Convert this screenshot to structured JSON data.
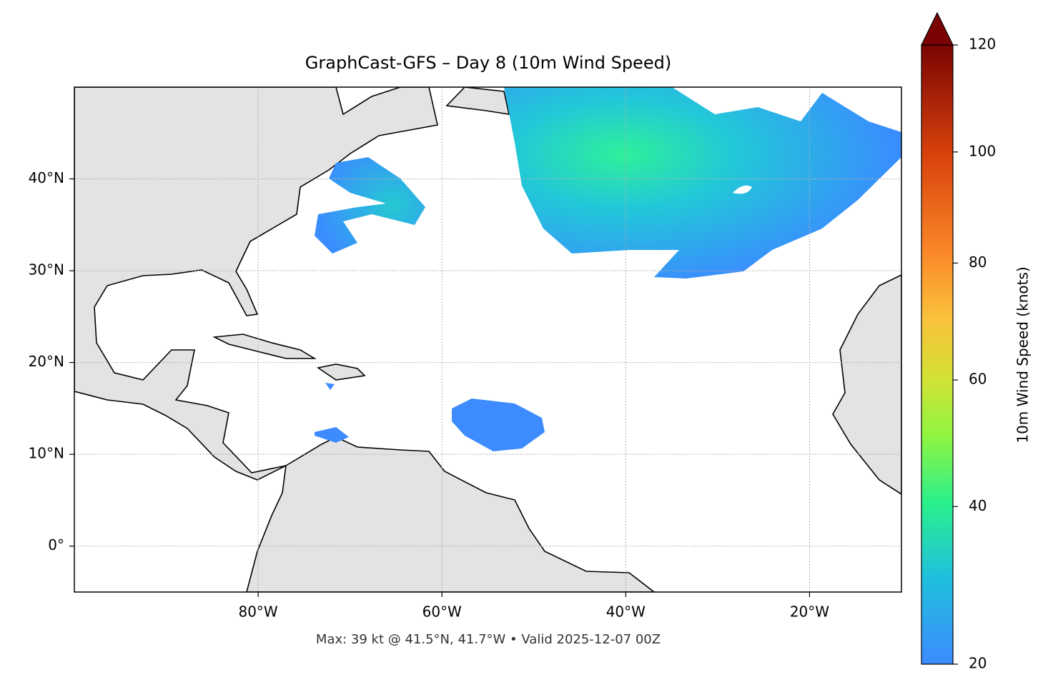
{
  "chart_data": {
    "type": "map",
    "title": "GraphCast-GFS – Day 8 (10m Wind Speed)",
    "footnote": "Max: 39 kt @ 41.5°N, 41.7°W • Valid 2025-12-07 00Z",
    "xlim": [
      -100,
      -10
    ],
    "ylim": [
      -5,
      50
    ],
    "xticks": [
      {
        "value": -80,
        "label": "80°W"
      },
      {
        "value": -60,
        "label": "60°W"
      },
      {
        "value": -40,
        "label": "40°W"
      },
      {
        "value": -20,
        "label": "20°W"
      }
    ],
    "yticks": [
      {
        "value": 0,
        "label": "0°"
      },
      {
        "value": 10,
        "label": "10°N"
      },
      {
        "value": 20,
        "label": "20°N"
      },
      {
        "value": 30,
        "label": "30°N"
      },
      {
        "value": 40,
        "label": "40°N"
      }
    ],
    "grid": true,
    "colorbar": {
      "label": "10m Wind Speed (knots)",
      "lim": [
        20,
        120
      ],
      "ticks": [
        20,
        40,
        60,
        80,
        100,
        120
      ],
      "gamma": 0.85,
      "extend": "max"
    }
  }
}
